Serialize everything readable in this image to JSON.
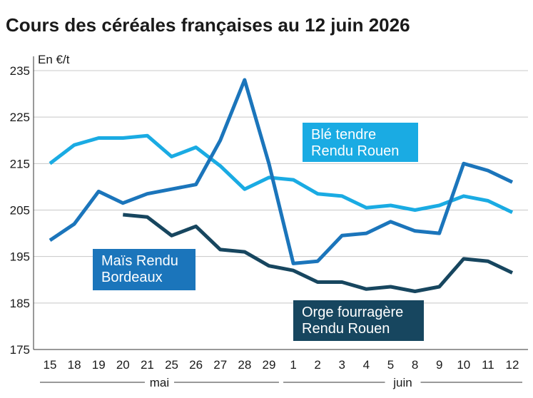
{
  "chart_data": {
    "type": "line",
    "title": "Cours des céréales françaises au 12 juin 2026",
    "ylabel": "En €/t",
    "ylim": [
      175,
      235
    ],
    "yticks": [
      175,
      185,
      195,
      205,
      215,
      225,
      235
    ],
    "grid": true,
    "categories": [
      "15",
      "18",
      "19",
      "20",
      "21",
      "25",
      "26",
      "27",
      "28",
      "29",
      "1",
      "2",
      "3",
      "4",
      "5",
      "8",
      "9",
      "10",
      "11",
      "12"
    ],
    "months": [
      {
        "label": "mai",
        "from": 0,
        "to": 9
      },
      {
        "label": "juin",
        "from": 10,
        "to": 19
      }
    ],
    "series": [
      {
        "name": "Blé tendre Rendu Rouen",
        "label_lines": [
          "Blé tendre",
          "Rendu Rouen"
        ],
        "color": "#1aabe3",
        "values": [
          215,
          219,
          220.5,
          220.5,
          221,
          216.5,
          218.5,
          214.5,
          209.5,
          212,
          211.5,
          208.5,
          208,
          205.5,
          206,
          205,
          206,
          208,
          207,
          204.5
        ]
      },
      {
        "name": "Maïs Rendu Bordeaux",
        "label_lines": [
          "Maïs Rendu",
          "Bordeaux"
        ],
        "color": "#1b75bb",
        "values": [
          198.5,
          202,
          209,
          206.5,
          208.5,
          209.5,
          210.5,
          220,
          233,
          215,
          193.5,
          194,
          199.5,
          200,
          202.5,
          200.5,
          200,
          215,
          213.5,
          211
        ]
      },
      {
        "name": "Orge fourragère Rendu Rouen",
        "label_lines": [
          "Orge fourragère",
          "Rendu Rouen"
        ],
        "color": "#17465f",
        "values": [
          null,
          null,
          null,
          204,
          203.5,
          199.5,
          201.5,
          196.5,
          196,
          193,
          192,
          189.5,
          189.5,
          188,
          188.5,
          187.5,
          188.5,
          194.5,
          194,
          191.5
        ]
      }
    ]
  }
}
